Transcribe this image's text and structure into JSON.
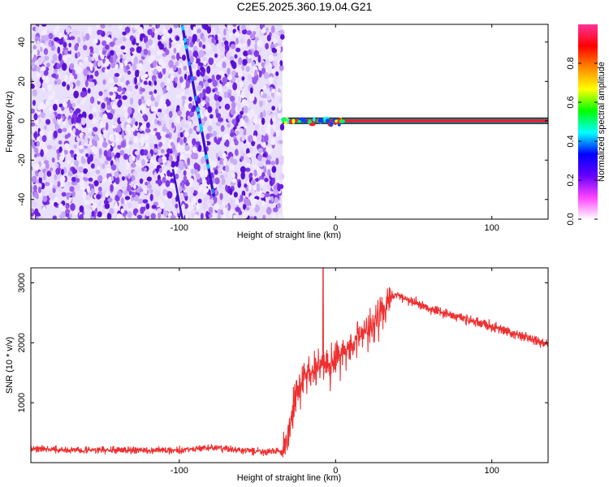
{
  "title": "C2E5.2025.360.19.04.G21",
  "chart_data": [
    {
      "type": "heatmap",
      "name": "spectrogram",
      "xlabel": "Height of straight line (km)",
      "ylabel": "Frequency (Hz)",
      "xlim": [
        -195,
        136
      ],
      "ylim": [
        -50,
        49
      ],
      "xticks": [
        -100,
        0,
        100
      ],
      "xtick_labels": [
        "-100",
        "0",
        "100"
      ],
      "yticks": [
        -40,
        -20,
        0,
        20,
        40
      ],
      "ytick_labels": [
        "-40",
        "-20",
        "0",
        "20",
        "40"
      ],
      "noise_region_x": [
        -195,
        -34
      ],
      "diagonal_line": {
        "x": [
          -98,
          -78
        ],
        "y": [
          48,
          -38
        ]
      },
      "diagonal_line_faint": {
        "x": [
          -104,
          -98
        ],
        "y": [
          -25,
          -50
        ]
      },
      "carrier_line": {
        "x": [
          -34,
          136
        ],
        "y": 0
      },
      "colorbar": {
        "label": "Normalized spectral amplitude",
        "range": [
          0,
          1
        ],
        "ticks": [
          0,
          0.2,
          0.4,
          0.6,
          0.8
        ],
        "tick_labels": [
          "0.0",
          "0.2",
          "0.4",
          "0.6",
          "0.8"
        ],
        "colors": [
          "#ffffff",
          "#ff44ff",
          "#6600ff",
          "#0000ff",
          "#00ffff",
          "#00ff00",
          "#ffff00",
          "#ff8800",
          "#ff0000",
          "#ff3399"
        ]
      }
    },
    {
      "type": "line",
      "name": "snr",
      "xlabel": "Height of straight line (km)",
      "ylabel": "SNR (10 * v/v)",
      "xlim": [
        -195,
        136
      ],
      "ylim": [
        0,
        3250
      ],
      "xticks": [
        -100,
        0,
        100
      ],
      "xtick_labels": [
        "-100",
        "0",
        "100"
      ],
      "yticks": [
        1000,
        2000,
        3000
      ],
      "ytick_labels": [
        "1000",
        "2000",
        "3000"
      ],
      "line_color": "#ee3030",
      "series": [
        {
          "name": "SNR",
          "x": [
            -195,
            -180,
            -160,
            -140,
            -120,
            -100,
            -90,
            -80,
            -70,
            -60,
            -50,
            -40,
            -34,
            -30,
            -25,
            -20,
            -15,
            -10,
            -5,
            0,
            10,
            20,
            30,
            35,
            40,
            45,
            60,
            80,
            100,
            120,
            136
          ],
          "y": [
            230,
            220,
            210,
            210,
            205,
            210,
            230,
            250,
            230,
            200,
            190,
            185,
            190,
            500,
            1100,
            1450,
            1500,
            1650,
            1550,
            1750,
            1950,
            2250,
            2550,
            2750,
            2800,
            2720,
            2580,
            2420,
            2270,
            2100,
            1980
          ],
          "spike_x": -8,
          "spike_y": 3250
        }
      ]
    }
  ]
}
